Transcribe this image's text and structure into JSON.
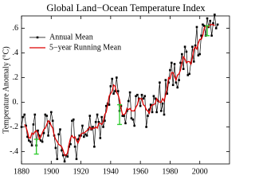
{
  "chart_data": {
    "type": "line",
    "title": "Global Land−Ocean Temperature Index",
    "y_label": "Temperature Anomaly (°C)",
    "xlim": [
      1880,
      2020
    ],
    "ylim": [
      -0.5,
      0.7
    ],
    "xticks": [
      1880,
      1900,
      1920,
      1940,
      1960,
      1980,
      2000
    ],
    "yticks": [
      {
        "value": -0.4,
        "label": "-.4"
      },
      {
        "value": -0.2,
        "label": "-.2"
      },
      {
        "value": 0,
        "label": "0."
      },
      {
        "value": 0.2,
        "label": ".2"
      },
      {
        "value": 0.4,
        "label": ".4"
      },
      {
        "value": 0.6,
        "label": ".6"
      }
    ],
    "legend": "upper left",
    "series": [
      {
        "name": "Annual Mean",
        "color": "#000000",
        "marker": "square",
        "x": [
          1880,
          1881,
          1882,
          1883,
          1884,
          1885,
          1886,
          1887,
          1888,
          1889,
          1890,
          1891,
          1892,
          1893,
          1894,
          1895,
          1896,
          1897,
          1898,
          1899,
          1900,
          1901,
          1902,
          1903,
          1904,
          1905,
          1906,
          1907,
          1908,
          1909,
          1910,
          1911,
          1912,
          1913,
          1914,
          1915,
          1916,
          1917,
          1918,
          1919,
          1920,
          1921,
          1922,
          1923,
          1924,
          1925,
          1926,
          1927,
          1928,
          1929,
          1930,
          1931,
          1932,
          1933,
          1934,
          1935,
          1936,
          1937,
          1938,
          1939,
          1940,
          1941,
          1942,
          1943,
          1944,
          1945,
          1946,
          1947,
          1948,
          1949,
          1950,
          1951,
          1952,
          1953,
          1954,
          1955,
          1956,
          1957,
          1958,
          1959,
          1960,
          1961,
          1962,
          1963,
          1964,
          1965,
          1966,
          1967,
          1968,
          1969,
          1970,
          1971,
          1972,
          1973,
          1974,
          1975,
          1976,
          1977,
          1978,
          1979,
          1980,
          1981,
          1982,
          1983,
          1984,
          1985,
          1986,
          1987,
          1988,
          1989,
          1990,
          1991,
          1992,
          1993,
          1994,
          1995,
          1996,
          1997,
          1998,
          1999,
          2000,
          2001,
          2002,
          2003,
          2004,
          2005,
          2006,
          2007,
          2008,
          2009,
          2010,
          2011,
          2012
        ],
        "values": [
          -0.2,
          -0.12,
          -0.1,
          -0.19,
          -0.28,
          -0.31,
          -0.32,
          -0.35,
          -0.18,
          -0.1,
          -0.35,
          -0.23,
          -0.27,
          -0.31,
          -0.32,
          -0.25,
          -0.1,
          -0.11,
          -0.27,
          -0.17,
          -0.08,
          -0.15,
          -0.27,
          -0.37,
          -0.46,
          -0.26,
          -0.22,
          -0.39,
          -0.43,
          -0.48,
          -0.43,
          -0.44,
          -0.36,
          -0.34,
          -0.15,
          -0.14,
          -0.36,
          -0.46,
          -0.3,
          -0.27,
          -0.27,
          -0.19,
          -0.28,
          -0.26,
          -0.27,
          -0.22,
          -0.11,
          -0.22,
          -0.2,
          -0.36,
          -0.16,
          -0.1,
          -0.16,
          -0.29,
          -0.12,
          -0.2,
          -0.15,
          -0.03,
          -0.01,
          -0.02,
          0.13,
          0.19,
          0.07,
          0.09,
          0.2,
          0.09,
          -0.07,
          -0.03,
          -0.11,
          -0.11,
          -0.17,
          -0.07,
          0.01,
          0.08,
          -0.13,
          -0.14,
          -0.19,
          0.05,
          0.06,
          0.03,
          -0.03,
          0.06,
          0.03,
          0.05,
          -0.2,
          -0.11,
          -0.06,
          -0.02,
          -0.08,
          0.05,
          0.03,
          -0.08,
          0.01,
          0.16,
          -0.07,
          -0.01,
          -0.1,
          0.18,
          0.07,
          0.16,
          0.26,
          0.32,
          0.14,
          0.31,
          0.16,
          0.12,
          0.18,
          0.32,
          0.39,
          0.27,
          0.45,
          0.41,
          0.22,
          0.23,
          0.32,
          0.45,
          0.33,
          0.46,
          0.61,
          0.38,
          0.39,
          0.54,
          0.63,
          0.62,
          0.54,
          0.68,
          0.61,
          0.66,
          0.54,
          0.64,
          0.71,
          0.6,
          0.63
        ]
      },
      {
        "name": "5−year Running Mean",
        "color": "#dd0000",
        "x": [
          1882,
          1883,
          1884,
          1885,
          1886,
          1887,
          1888,
          1889,
          1890,
          1891,
          1892,
          1893,
          1894,
          1895,
          1896,
          1897,
          1898,
          1899,
          1900,
          1901,
          1902,
          1903,
          1904,
          1905,
          1906,
          1907,
          1908,
          1909,
          1910,
          1911,
          1912,
          1913,
          1914,
          1915,
          1916,
          1917,
          1918,
          1919,
          1920,
          1921,
          1922,
          1923,
          1924,
          1925,
          1926,
          1927,
          1928,
          1929,
          1930,
          1931,
          1932,
          1933,
          1934,
          1935,
          1936,
          1937,
          1938,
          1939,
          1940,
          1941,
          1942,
          1943,
          1944,
          1945,
          1946,
          1947,
          1948,
          1949,
          1950,
          1951,
          1952,
          1953,
          1954,
          1955,
          1956,
          1957,
          1958,
          1959,
          1960,
          1961,
          1962,
          1963,
          1964,
          1965,
          1966,
          1967,
          1968,
          1969,
          1970,
          1971,
          1972,
          1973,
          1974,
          1975,
          1976,
          1977,
          1978,
          1979,
          1980,
          1981,
          1982,
          1983,
          1984,
          1985,
          1986,
          1987,
          1988,
          1989,
          1990,
          1991,
          1992,
          1993,
          1994,
          1995,
          1996,
          1997,
          1998,
          1999,
          2000,
          2001,
          2002,
          2003,
          2004,
          2005,
          2006,
          2007,
          2008,
          2009,
          2010
        ],
        "values": [
          -0.18,
          -0.2,
          -0.24,
          -0.29,
          -0.29,
          -0.25,
          -0.26,
          -0.24,
          -0.23,
          -0.25,
          -0.3,
          -0.28,
          -0.25,
          -0.22,
          -0.21,
          -0.18,
          -0.15,
          -0.16,
          -0.19,
          -0.21,
          -0.27,
          -0.3,
          -0.32,
          -0.34,
          -0.35,
          -0.36,
          -0.39,
          -0.43,
          -0.43,
          -0.41,
          -0.34,
          -0.29,
          -0.27,
          -0.29,
          -0.28,
          -0.31,
          -0.33,
          -0.3,
          -0.26,
          -0.25,
          -0.25,
          -0.24,
          -0.23,
          -0.22,
          -0.2,
          -0.22,
          -0.21,
          -0.21,
          -0.2,
          -0.21,
          -0.17,
          -0.17,
          -0.18,
          -0.16,
          -0.1,
          -0.08,
          -0.02,
          0.05,
          0.07,
          0.09,
          0.14,
          0.13,
          0.08,
          0.06,
          0.02,
          -0.05,
          -0.1,
          -0.1,
          -0.09,
          -0.05,
          -0.06,
          -0.05,
          -0.07,
          -0.07,
          -0.07,
          -0.04,
          -0.02,
          0.03,
          0.03,
          0.03,
          -0.02,
          -0.03,
          -0.06,
          -0.07,
          -0.09,
          -0.04,
          -0.02,
          -0.02,
          -0.01,
          0.03,
          0.01,
          0.0,
          0.0,
          0.03,
          0.01,
          0.06,
          0.11,
          0.2,
          0.19,
          0.24,
          0.24,
          0.21,
          0.18,
          0.22,
          0.23,
          0.26,
          0.32,
          0.37,
          0.35,
          0.32,
          0.33,
          0.33,
          0.31,
          0.36,
          0.43,
          0.45,
          0.43,
          0.48,
          0.51,
          0.51,
          0.54,
          0.6,
          0.62,
          0.62,
          0.61,
          0.63,
          0.63,
          0.63,
          0.62
        ]
      }
    ],
    "error_bars": {
      "color": "#33cc33",
      "x": [
        1890,
        1946,
        2005
      ],
      "values": [
        -0.36,
        -0.1,
        0.58
      ],
      "errors": [
        0.06,
        0.08,
        0.04
      ]
    }
  }
}
